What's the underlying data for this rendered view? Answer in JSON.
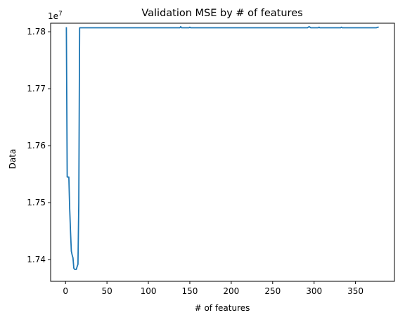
{
  "chart_data": {
    "type": "line",
    "title": "Validation MSE by # of features",
    "xlabel": "# of features",
    "ylabel": "Data",
    "y_offset_label": "1e7",
    "xlim": [
      -18,
      397
    ],
    "ylim": [
      1.7362,
      1.7815
    ],
    "x_ticks": [
      0,
      50,
      100,
      150,
      200,
      250,
      300,
      350
    ],
    "y_ticks": [
      1.74,
      1.75,
      1.76,
      1.77,
      1.78
    ],
    "y_tick_labels": [
      "1.74",
      "1.75",
      "1.76",
      "1.77",
      "1.78"
    ],
    "grid": false,
    "line_color": "#1f77b4",
    "series": [
      {
        "x": [
          1,
          2,
          3,
          4,
          5,
          6,
          7,
          8,
          9,
          10,
          11,
          12,
          13,
          14,
          15,
          16,
          17,
          20,
          50,
          100,
          137,
          138,
          139,
          140,
          141,
          149,
          150,
          151,
          200,
          240,
          250,
          290,
          292,
          293,
          294,
          295,
          296,
          300,
          305,
          306,
          307,
          330,
          332,
          333,
          334,
          350,
          375,
          377,
          378
        ],
        "y": [
          1.7808,
          1.7545,
          1.7545,
          1.7545,
          1.749,
          1.745,
          1.7415,
          1.7408,
          1.7403,
          1.7385,
          1.7383,
          1.7383,
          1.7383,
          1.7388,
          1.7392,
          1.75,
          1.7807,
          1.7807,
          1.7807,
          1.7807,
          1.7807,
          1.7807,
          1.7809,
          1.7807,
          1.7807,
          1.7807,
          1.7808,
          1.7807,
          1.7807,
          1.7807,
          1.7807,
          1.7807,
          1.7807,
          1.7808,
          1.7809,
          1.7808,
          1.7807,
          1.7807,
          1.7807,
          1.7808,
          1.7807,
          1.7807,
          1.7807,
          1.7808,
          1.7807,
          1.7807,
          1.7807,
          1.7808,
          1.7808
        ]
      }
    ]
  }
}
